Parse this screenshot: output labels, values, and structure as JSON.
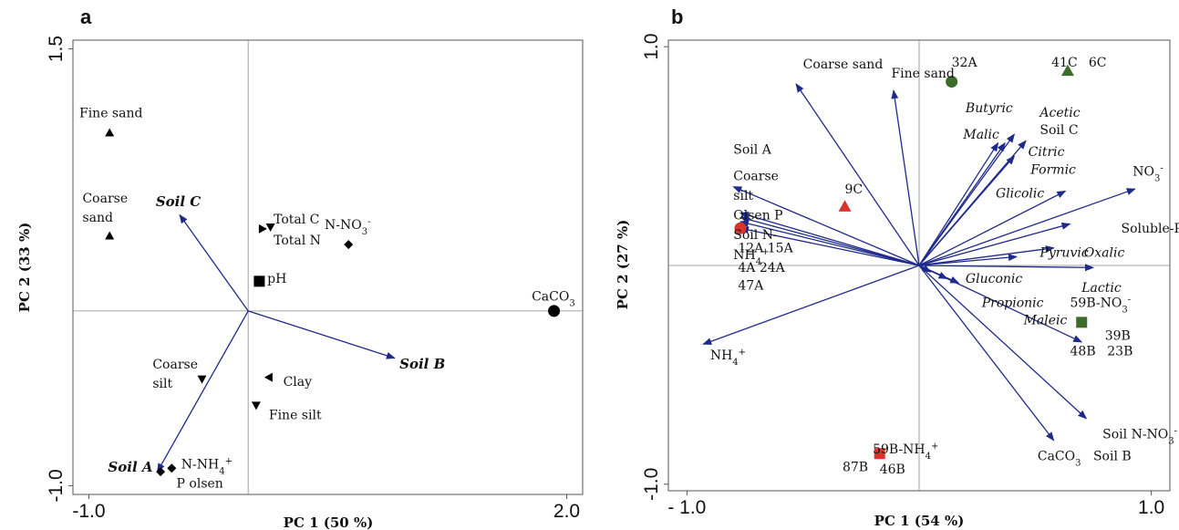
{
  "chart_data": [
    {
      "type": "scatter",
      "panel_label": "a",
      "xlabel": "PC 1 (50 %)",
      "ylabel": "PC 2 (33 %)",
      "xlim": [
        -1.1,
        2.1
      ],
      "ylim": [
        -1.05,
        1.55
      ],
      "xticks": [
        {
          "v": -1.0,
          "t": "-1.0"
        },
        {
          "v": 2.0,
          "t": "2.0"
        }
      ],
      "yticks": [
        {
          "v": 1.5,
          "t": "1.5"
        },
        {
          "v": -1.0,
          "t": "-1.0"
        }
      ],
      "vectors": [
        {
          "x": -0.43,
          "y": 0.55,
          "label": "Soil C"
        },
        {
          "x": 0.92,
          "y": -0.27,
          "label": "Soil B"
        },
        {
          "x": -0.57,
          "y": -0.92,
          "label": "Soil A"
        }
      ],
      "points": [
        {
          "x": -0.87,
          "y": 1.02,
          "marker": "triangle-up",
          "label": "Fine sand"
        },
        {
          "x": -0.87,
          "y": 0.43,
          "marker": "triangle-up",
          "label": "Coarse sand"
        },
        {
          "x": 0.09,
          "y": 0.47,
          "marker": "triangle-right",
          "label": ""
        },
        {
          "x": 0.14,
          "y": 0.48,
          "marker": "triangle-down",
          "label": "Total C"
        },
        {
          "x": 0.63,
          "y": 0.38,
          "marker": "diamond",
          "label": "N-NO3-"
        },
        {
          "x": 0.07,
          "y": 0.17,
          "marker": "square",
          "label": "pH"
        },
        {
          "x": 1.92,
          "y": 0.0,
          "marker": "circle",
          "label": "CaCO3"
        },
        {
          "x": -0.29,
          "y": -0.39,
          "marker": "triangle-down",
          "label": "Coarse silt"
        },
        {
          "x": 0.13,
          "y": -0.38,
          "marker": "triangle-left",
          "label": "Clay"
        },
        {
          "x": 0.05,
          "y": -0.54,
          "marker": "triangle-down",
          "label": "Fine silt"
        },
        {
          "x": -0.48,
          "y": -0.9,
          "marker": "diamond",
          "label": "N-NH4+"
        },
        {
          "x": -0.55,
          "y": -0.92,
          "marker": "diamond",
          "label": ""
        }
      ],
      "extra_labels": [
        {
          "x": 0.16,
          "y": 0.38,
          "label": "Total N"
        },
        {
          "x": -0.45,
          "y": -1.01,
          "label": "P olsen"
        }
      ]
    },
    {
      "type": "scatter",
      "panel_label": "b",
      "xlabel": "PC 1 (54 %)",
      "ylabel": "PC 2 (27 %)",
      "xlim": [
        -1.08,
        1.08
      ],
      "ylim": [
        -1.03,
        1.03
      ],
      "xticks": [
        {
          "v": -1.0,
          "t": "- 1.0"
        },
        {
          "v": 1.0,
          "t": "1.0"
        }
      ],
      "yticks": [
        {
          "v": 1.0,
          "t": "1.0"
        },
        {
          "v": -1.0,
          "t": "-1.0"
        }
      ],
      "vectors": [
        {
          "x": -0.53,
          "y": 0.83
        },
        {
          "x": -0.11,
          "y": 0.8
        },
        {
          "x": 0.34,
          "y": 0.56
        },
        {
          "x": 0.37,
          "y": 0.56
        },
        {
          "x": 0.41,
          "y": 0.6
        },
        {
          "x": 0.46,
          "y": 0.57
        },
        {
          "x": 0.41,
          "y": 0.5
        },
        {
          "x": 0.63,
          "y": 0.34
        },
        {
          "x": 0.93,
          "y": 0.35
        },
        {
          "x": 0.65,
          "y": 0.19
        },
        {
          "x": 0.58,
          "y": 0.08
        },
        {
          "x": 0.42,
          "y": 0.04
        },
        {
          "x": 0.75,
          "y": -0.01
        },
        {
          "x": 0.17,
          "y": -0.08
        },
        {
          "x": 0.12,
          "y": -0.06
        },
        {
          "x": 0.05,
          "y": -0.03
        },
        {
          "x": 0.7,
          "y": -0.35
        },
        {
          "x": 0.72,
          "y": -0.7
        },
        {
          "x": 0.58,
          "y": -0.8
        },
        {
          "x": -0.8,
          "y": 0.36
        },
        {
          "x": -0.77,
          "y": 0.24
        },
        {
          "x": -0.77,
          "y": 0.22
        },
        {
          "x": -0.77,
          "y": 0.2
        },
        {
          "x": -0.77,
          "y": 0.17
        },
        {
          "x": -0.93,
          "y": -0.36
        }
      ],
      "points": [
        {
          "x": 0.14,
          "y": 0.84,
          "marker": "circle",
          "color": "#3d6b2a"
        },
        {
          "x": 0.64,
          "y": 0.89,
          "marker": "triangle-up",
          "color": "#3d6b2a"
        },
        {
          "x": -0.32,
          "y": 0.27,
          "marker": "triangle-up",
          "color": "#d9342b"
        },
        {
          "x": -0.77,
          "y": 0.17,
          "marker": "circle",
          "color": "#d9342b"
        },
        {
          "x": 0.7,
          "y": -0.26,
          "marker": "square",
          "color": "#3d6b2a"
        },
        {
          "x": -0.17,
          "y": -0.86,
          "marker": "square",
          "color": "#d9342b"
        }
      ],
      "labels": [
        {
          "x": -0.5,
          "y": 0.9,
          "text": "Coarse sand",
          "style": "normal"
        },
        {
          "x": -0.12,
          "y": 0.86,
          "text": "Fine sand",
          "style": "normal"
        },
        {
          "x": 0.14,
          "y": 0.91,
          "text": "32A",
          "style": "normal"
        },
        {
          "x": 0.57,
          "y": 0.91,
          "text": "41C",
          "style": "normal"
        },
        {
          "x": 0.73,
          "y": 0.91,
          "text": "6C",
          "style": "normal"
        },
        {
          "x": 0.2,
          "y": 0.7,
          "text": "Butyric",
          "style": "italic"
        },
        {
          "x": 0.19,
          "y": 0.58,
          "text": "Malic",
          "style": "italic"
        },
        {
          "x": 0.52,
          "y": 0.68,
          "text": "Acetic",
          "style": "italic"
        },
        {
          "x": 0.52,
          "y": 0.6,
          "text": "Soil C",
          "style": "normal"
        },
        {
          "x": 0.47,
          "y": 0.5,
          "text": "Citric",
          "style": "italic"
        },
        {
          "x": 0.48,
          "y": 0.42,
          "text": "Formic",
          "style": "italic"
        },
        {
          "x": 0.33,
          "y": 0.31,
          "text": "Glicolic",
          "style": "italic"
        },
        {
          "x": 0.92,
          "y": 0.41,
          "text": "NO3-",
          "style": "normal"
        },
        {
          "x": 0.87,
          "y": 0.15,
          "text": "Soluble-P",
          "style": "normal"
        },
        {
          "x": 0.52,
          "y": 0.04,
          "text": "Pyruvic",
          "style": "italic"
        },
        {
          "x": 0.71,
          "y": 0.04,
          "text": "Oxalic",
          "style": "italic"
        },
        {
          "x": 0.7,
          "y": -0.12,
          "text": "Lactic",
          "style": "italic"
        },
        {
          "x": 0.2,
          "y": -0.08,
          "text": "Gluconic",
          "style": "italic"
        },
        {
          "x": 0.27,
          "y": -0.19,
          "text": "Propionic",
          "style": "italic"
        },
        {
          "x": 0.45,
          "y": -0.27,
          "text": "Maleic",
          "style": "italic"
        },
        {
          "x": 0.65,
          "y": -0.19,
          "text": "59B-NO3-",
          "style": "normal"
        },
        {
          "x": 0.8,
          "y": -0.34,
          "text": "39B",
          "style": "normal"
        },
        {
          "x": 0.65,
          "y": -0.41,
          "text": "48B",
          "style": "normal"
        },
        {
          "x": 0.81,
          "y": -0.41,
          "text": "23B",
          "style": "normal"
        },
        {
          "x": -0.8,
          "y": 0.51,
          "text": "Soil A",
          "style": "normal"
        },
        {
          "x": -0.8,
          "y": 0.39,
          "text": "Coarse",
          "style": "normal"
        },
        {
          "x": -0.8,
          "y": 0.3,
          "text": "silt",
          "style": "normal"
        },
        {
          "x": -0.8,
          "y": 0.21,
          "text": "Olsen P",
          "style": "normal"
        },
        {
          "x": -0.8,
          "y": 0.12,
          "text": "Soil N-",
          "style": "normal"
        },
        {
          "x": -0.8,
          "y": 0.03,
          "text": "NH4+",
          "style": "normal"
        },
        {
          "x": -0.78,
          "y": 0.06,
          "text": "12A 15A",
          "style": "normal"
        },
        {
          "x": -0.78,
          "y": -0.03,
          "text": "4A 24A",
          "style": "normal"
        },
        {
          "x": -0.78,
          "y": -0.11,
          "text": "47A",
          "style": "normal"
        },
        {
          "x": -0.9,
          "y": -0.43,
          "text": "NH4+",
          "style": "normal"
        },
        {
          "x": -0.32,
          "y": 0.33,
          "text": "9C",
          "style": "normal"
        },
        {
          "x": -0.2,
          "y": -0.86,
          "text": "59B-NH4+",
          "style": "normal"
        },
        {
          "x": -0.33,
          "y": -0.94,
          "text": "87B",
          "style": "normal"
        },
        {
          "x": -0.17,
          "y": -0.95,
          "text": "46B",
          "style": "normal"
        },
        {
          "x": 0.79,
          "y": -0.79,
          "text": "Soil N-NO3-",
          "style": "normal"
        },
        {
          "x": 0.51,
          "y": -0.89,
          "text": "CaCO3",
          "style": "normal"
        },
        {
          "x": 0.75,
          "y": -0.89,
          "text": "Soil B",
          "style": "normal"
        }
      ]
    }
  ]
}
